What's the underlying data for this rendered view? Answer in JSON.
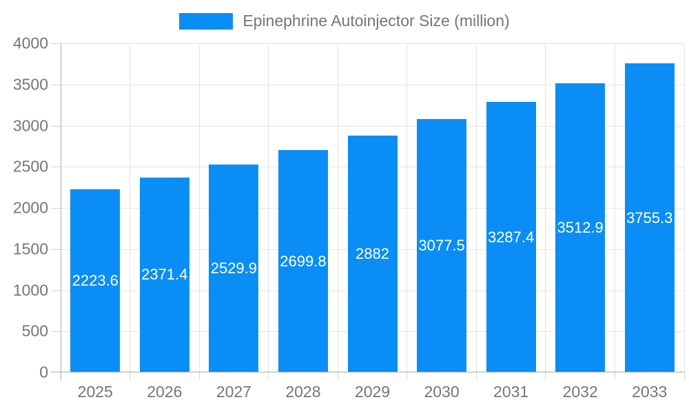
{
  "legend": {
    "label": "Epinephrine Autoinjector Size (million)"
  },
  "chart_data": {
    "type": "bar",
    "title": "Epinephrine Autoinjector Size (million)",
    "categories": [
      "2025",
      "2026",
      "2027",
      "2028",
      "2029",
      "2030",
      "2031",
      "2032",
      "2033"
    ],
    "values": [
      2223.6,
      2371.4,
      2529.9,
      2699.8,
      2882,
      3077.5,
      3287.4,
      3512.9,
      3755.3
    ],
    "xlabel": "",
    "ylabel": "",
    "ylim": [
      0,
      4000
    ],
    "ytick_step": 500,
    "yticks": [
      0,
      500,
      1000,
      1500,
      2000,
      2500,
      3000,
      3500,
      4000
    ],
    "grid": true,
    "legend_position": "top",
    "bar_value_labels": "inside-center"
  },
  "colors": {
    "bar": "#0a8ef5",
    "bar_label_text": "#ffffff",
    "axis_text": "#757575",
    "gridline": "#e4e4e4",
    "axis_line": "#ababab",
    "tick": "#d2d2d2",
    "background": "#ffffff"
  }
}
